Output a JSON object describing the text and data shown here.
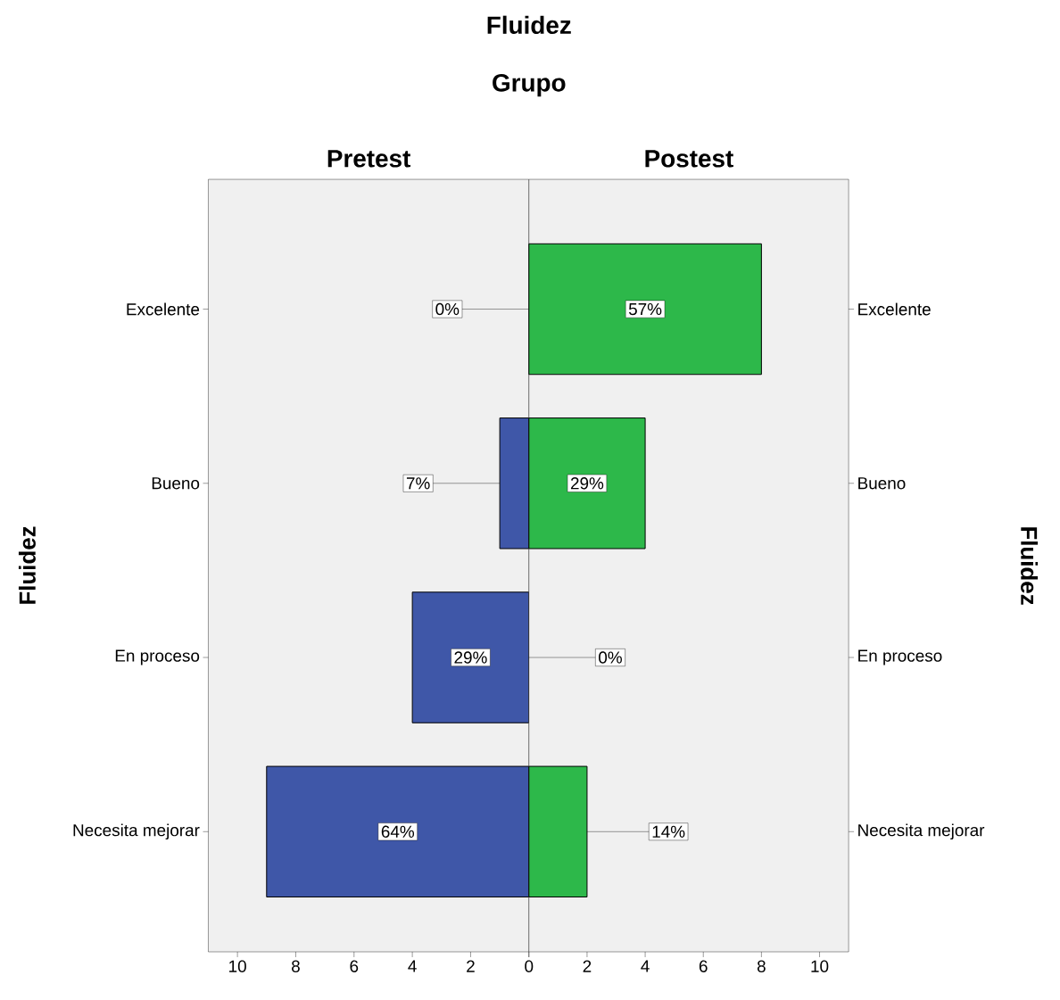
{
  "chart_data": [
    {
      "type": "bar",
      "orientation": "horizontal",
      "title": "Pretest",
      "ylabel": "Fluidez",
      "annotations": [
        "Fluidez",
        "Grupo",
        {
          "text": "0%",
          "x": 0,
          "y": "Excelente"
        },
        {
          "text": "7%",
          "x": 1,
          "y": "Bueno"
        },
        {
          "text": "29%",
          "x": 2,
          "y": "En proceso"
        },
        {
          "text": "64%",
          "x": 4.5,
          "y": "Necesita mejorar"
        }
      ],
      "categories": [
        "Excelente",
        "Bueno",
        "En proceso",
        "Necesita mejorar"
      ],
      "values": [
        0,
        1,
        4,
        9
      ],
      "color": "#3f57a8",
      "xlim": [
        11,
        0
      ],
      "xticks": [
        {
          "value": 0,
          "label": null
        },
        2,
        4,
        6,
        8,
        10
      ]
    },
    {
      "type": "bar",
      "orientation": "horizontal",
      "title": "Postest",
      "y2label": "Fluidez",
      "annotations": [
        {
          "text": "57%",
          "x": 4,
          "y": "Excelente"
        },
        {
          "text": "29%",
          "x": 2,
          "y": "Bueno"
        },
        {
          "text": "0%",
          "x": 0,
          "y": "En proceso"
        },
        {
          "text": "14%",
          "x": 2,
          "y": "Necesita mejorar"
        }
      ],
      "categories": [
        "Excelente",
        "Bueno",
        "En proceso",
        "Necesita mejorar"
      ],
      "values": [
        8,
        4,
        0,
        2
      ],
      "color": "#2db84a",
      "xlim": [
        0,
        11
      ],
      "xticks": [
        0,
        2,
        4,
        6,
        8,
        10
      ]
    }
  ]
}
